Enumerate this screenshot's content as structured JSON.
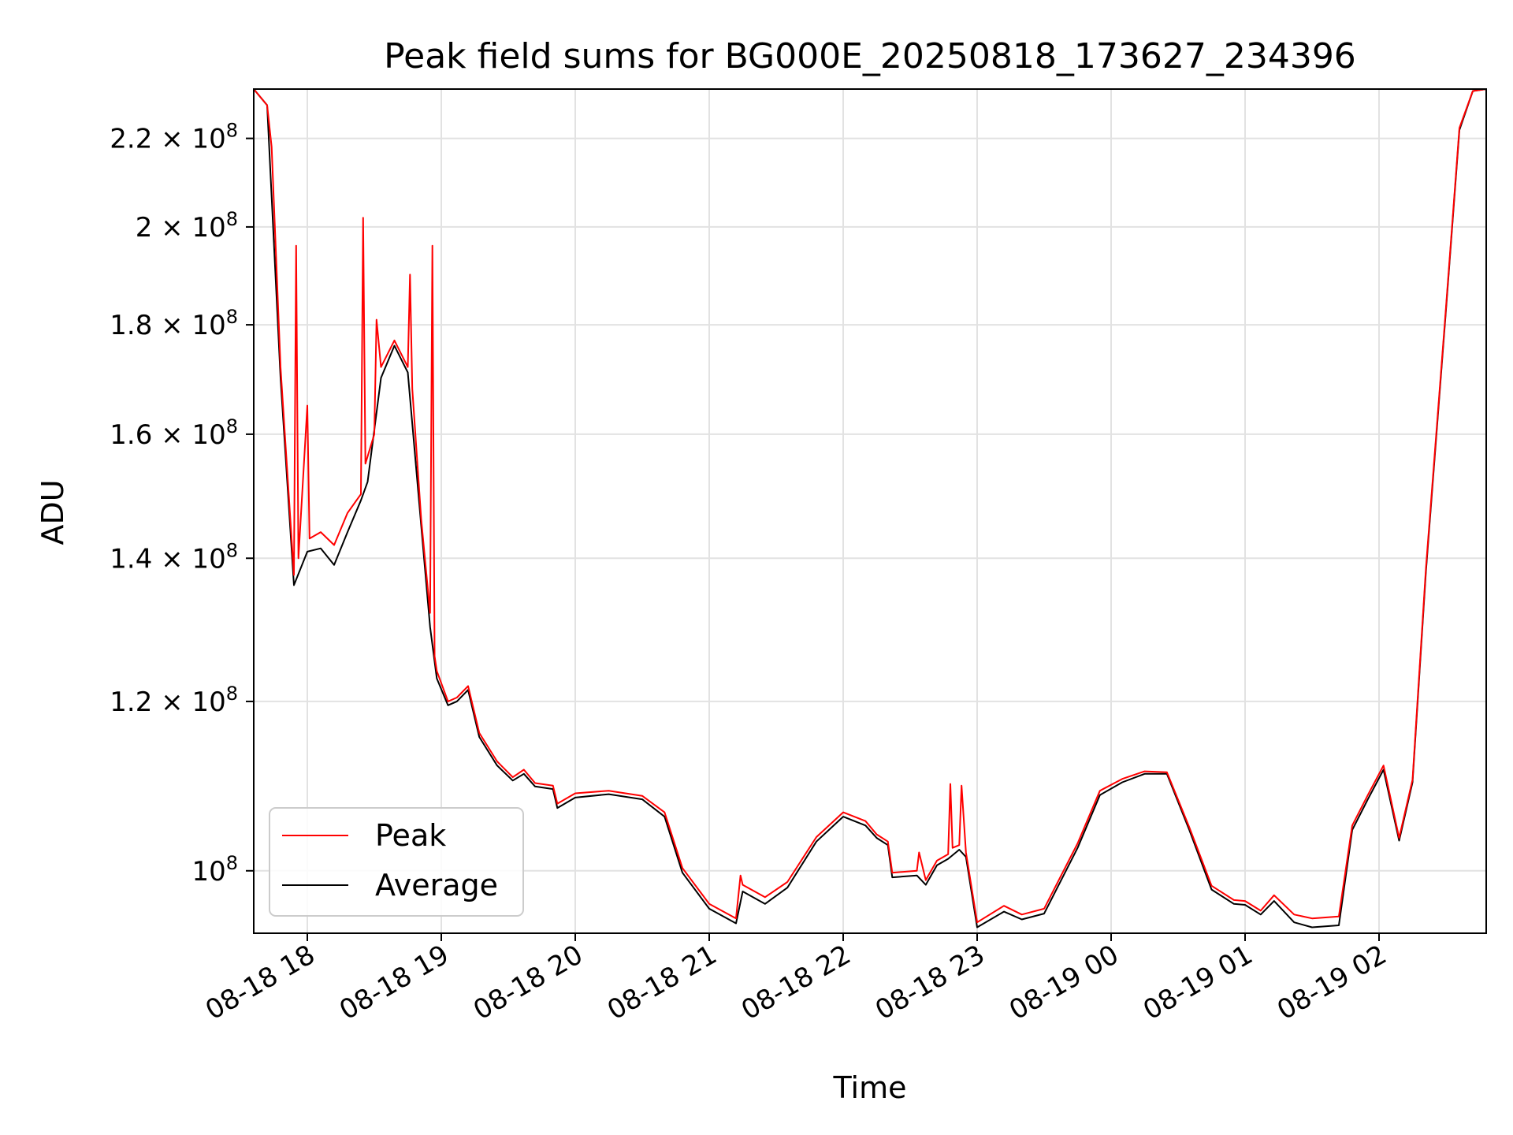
{
  "chart_data": {
    "type": "line",
    "title": "Peak field sums for BG000E_20250818_173627_234396",
    "xlabel": "Time",
    "ylabel": "ADU",
    "y_scale": "log",
    "ylim": [
      93500000,
      232000000
    ],
    "xlim": [
      "2025-08-18T17:36",
      "2025-08-19T02:48"
    ],
    "grid": true,
    "legend_position": "lower-left",
    "x_ticks": [
      {
        "t": "2025-08-18T18:00",
        "label": "08-18 18"
      },
      {
        "t": "2025-08-18T19:00",
        "label": "08-18 19"
      },
      {
        "t": "2025-08-18T20:00",
        "label": "08-18 20"
      },
      {
        "t": "2025-08-18T21:00",
        "label": "08-18 21"
      },
      {
        "t": "2025-08-18T22:00",
        "label": "08-18 22"
      },
      {
        "t": "2025-08-18T23:00",
        "label": "08-18 23"
      },
      {
        "t": "2025-08-19T00:00",
        "label": "08-19 00"
      },
      {
        "t": "2025-08-19T01:00",
        "label": "08-19 01"
      },
      {
        "t": "2025-08-19T02:00",
        "label": "08-19 02"
      }
    ],
    "y_ticks": [
      {
        "value": 100000000,
        "mant": "",
        "exp": "8"
      },
      {
        "value": 120000000,
        "mant": "1.2",
        "exp": "8"
      },
      {
        "value": 140000000,
        "mant": "1.4",
        "exp": "8"
      },
      {
        "value": 160000000,
        "mant": "1.6",
        "exp": "8"
      },
      {
        "value": 180000000,
        "mant": "1.8",
        "exp": "8"
      },
      {
        "value": 200000000,
        "mant": "2",
        "exp": "8"
      },
      {
        "value": 220000000,
        "mant": "2.2",
        "exp": "8"
      }
    ],
    "series": [
      {
        "name": "Average",
        "color": "#000000",
        "points": [
          [
            "2025-08-18T17:36",
            232000000
          ],
          [
            "2025-08-18T17:42",
            228000000
          ],
          [
            "2025-08-18T17:48",
            170000000
          ],
          [
            "2025-08-18T17:54",
            136000000
          ],
          [
            "2025-08-18T18:00",
            141000000
          ],
          [
            "2025-08-18T18:06",
            141500000
          ],
          [
            "2025-08-18T18:12",
            139000000
          ],
          [
            "2025-08-18T18:18",
            144000000
          ],
          [
            "2025-08-18T18:24",
            149000000
          ],
          [
            "2025-08-18T18:27",
            152000000
          ],
          [
            "2025-08-18T18:33",
            170000000
          ],
          [
            "2025-08-18T18:39",
            176000000
          ],
          [
            "2025-08-18T18:45",
            171000000
          ],
          [
            "2025-08-18T18:51",
            145000000
          ],
          [
            "2025-08-18T18:55",
            130000000
          ],
          [
            "2025-08-18T18:58",
            123000000
          ],
          [
            "2025-08-18T19:03",
            119500000
          ],
          [
            "2025-08-18T19:07",
            120000000
          ],
          [
            "2025-08-18T19:12",
            121500000
          ],
          [
            "2025-08-18T19:17",
            115500000
          ],
          [
            "2025-08-18T19:25",
            112000000
          ],
          [
            "2025-08-18T19:32",
            110200000
          ],
          [
            "2025-08-18T19:37",
            111000000
          ],
          [
            "2025-08-18T19:42",
            109500000
          ],
          [
            "2025-08-18T19:50",
            109200000
          ],
          [
            "2025-08-18T19:52",
            107000000
          ],
          [
            "2025-08-18T20:00",
            108200000
          ],
          [
            "2025-08-18T20:15",
            108600000
          ],
          [
            "2025-08-18T20:30",
            108000000
          ],
          [
            "2025-08-18T20:40",
            106000000
          ],
          [
            "2025-08-18T20:48",
            99800000
          ],
          [
            "2025-08-18T21:00",
            96000000
          ],
          [
            "2025-08-18T21:12",
            94500000
          ],
          [
            "2025-08-18T21:15",
            97800000
          ],
          [
            "2025-08-18T21:25",
            96500000
          ],
          [
            "2025-08-18T21:35",
            98200000
          ],
          [
            "2025-08-18T21:48",
            103200000
          ],
          [
            "2025-08-18T22:00",
            106000000
          ],
          [
            "2025-08-18T22:10",
            105000000
          ],
          [
            "2025-08-18T22:15",
            103600000
          ],
          [
            "2025-08-18T22:20",
            102800000
          ],
          [
            "2025-08-18T22:22",
            99300000
          ],
          [
            "2025-08-18T22:33",
            99500000
          ],
          [
            "2025-08-18T22:37",
            98500000
          ],
          [
            "2025-08-18T22:42",
            100600000
          ],
          [
            "2025-08-18T22:47",
            101300000
          ],
          [
            "2025-08-18T22:52",
            102300000
          ],
          [
            "2025-08-18T22:55",
            101500000
          ],
          [
            "2025-08-18T23:00",
            94100000
          ],
          [
            "2025-08-18T23:12",
            95700000
          ],
          [
            "2025-08-18T23:20",
            94900000
          ],
          [
            "2025-08-18T23:30",
            95500000
          ],
          [
            "2025-08-18T23:45",
            102500000
          ],
          [
            "2025-08-18T23:55",
            108500000
          ],
          [
            "2025-08-19T00:05",
            110000000
          ],
          [
            "2025-08-19T00:15",
            111000000
          ],
          [
            "2025-08-19T00:25",
            111000000
          ],
          [
            "2025-08-19T00:35",
            104500000
          ],
          [
            "2025-08-19T00:45",
            98000000
          ],
          [
            "2025-08-19T00:55",
            96500000
          ],
          [
            "2025-08-19T01:00",
            96400000
          ],
          [
            "2025-08-19T01:07",
            95400000
          ],
          [
            "2025-08-19T01:13",
            96800000
          ],
          [
            "2025-08-19T01:22",
            94600000
          ],
          [
            "2025-08-19T01:30",
            94100000
          ],
          [
            "2025-08-19T01:42",
            94300000
          ],
          [
            "2025-08-19T01:48",
            104500000
          ],
          [
            "2025-08-19T01:55",
            108000000
          ],
          [
            "2025-08-19T02:02",
            111500000
          ],
          [
            "2025-08-19T02:09",
            103300000
          ],
          [
            "2025-08-19T02:15",
            110000000
          ],
          [
            "2025-08-19T02:21",
            138000000
          ],
          [
            "2025-08-19T02:30",
            183000000
          ],
          [
            "2025-08-19T02:36",
            222000000
          ],
          [
            "2025-08-19T02:42",
            231500000
          ],
          [
            "2025-08-19T02:48",
            232000000
          ]
        ]
      },
      {
        "name": "Peak",
        "color": "#ff0000",
        "points": [
          [
            "2025-08-18T17:36",
            232000000
          ],
          [
            "2025-08-18T17:42",
            228000000
          ],
          [
            "2025-08-18T17:44",
            218000000
          ],
          [
            "2025-08-18T17:48",
            172000000
          ],
          [
            "2025-08-18T17:54",
            137500000
          ],
          [
            "2025-08-18T17:55",
            196000000
          ],
          [
            "2025-08-18T17:56",
            140000000
          ],
          [
            "2025-08-18T18:00",
            165000000
          ],
          [
            "2025-08-18T18:01",
            143000000
          ],
          [
            "2025-08-18T18:06",
            144000000
          ],
          [
            "2025-08-18T18:12",
            142000000
          ],
          [
            "2025-08-18T18:18",
            147000000
          ],
          [
            "2025-08-18T18:24",
            150000000
          ],
          [
            "2025-08-18T18:25",
            202000000
          ],
          [
            "2025-08-18T18:26",
            155000000
          ],
          [
            "2025-08-18T18:30",
            160000000
          ],
          [
            "2025-08-18T18:31",
            181000000
          ],
          [
            "2025-08-18T18:33",
            172000000
          ],
          [
            "2025-08-18T18:39",
            177000000
          ],
          [
            "2025-08-18T18:45",
            172000000
          ],
          [
            "2025-08-18T18:46",
            190000000
          ],
          [
            "2025-08-18T18:47",
            168000000
          ],
          [
            "2025-08-18T18:51",
            146000000
          ],
          [
            "2025-08-18T18:55",
            132000000
          ],
          [
            "2025-08-18T18:56",
            196000000
          ],
          [
            "2025-08-18T18:57",
            126000000
          ],
          [
            "2025-08-18T18:58",
            124000000
          ],
          [
            "2025-08-18T19:03",
            120000000
          ],
          [
            "2025-08-18T19:07",
            120500000
          ],
          [
            "2025-08-18T19:12",
            122000000
          ],
          [
            "2025-08-18T19:17",
            116000000
          ],
          [
            "2025-08-18T19:25",
            112500000
          ],
          [
            "2025-08-18T19:32",
            110600000
          ],
          [
            "2025-08-18T19:37",
            111500000
          ],
          [
            "2025-08-18T19:42",
            109900000
          ],
          [
            "2025-08-18T19:50",
            109600000
          ],
          [
            "2025-08-18T19:52",
            107500000
          ],
          [
            "2025-08-18T20:00",
            108700000
          ],
          [
            "2025-08-18T20:15",
            109000000
          ],
          [
            "2025-08-18T20:30",
            108400000
          ],
          [
            "2025-08-18T20:40",
            106500000
          ],
          [
            "2025-08-18T20:48",
            100300000
          ],
          [
            "2025-08-18T21:00",
            96500000
          ],
          [
            "2025-08-18T21:12",
            95000000
          ],
          [
            "2025-08-18T21:14",
            99500000
          ],
          [
            "2025-08-18T21:15",
            98500000
          ],
          [
            "2025-08-18T21:25",
            97200000
          ],
          [
            "2025-08-18T21:35",
            98800000
          ],
          [
            "2025-08-18T21:48",
            103700000
          ],
          [
            "2025-08-18T22:00",
            106500000
          ],
          [
            "2025-08-18T22:10",
            105500000
          ],
          [
            "2025-08-18T22:15",
            104000000
          ],
          [
            "2025-08-18T22:20",
            103200000
          ],
          [
            "2025-08-18T22:22",
            99800000
          ],
          [
            "2025-08-18T22:33",
            100000000
          ],
          [
            "2025-08-18T22:34",
            102000000
          ],
          [
            "2025-08-18T22:37",
            99000000
          ],
          [
            "2025-08-18T22:42",
            101100000
          ],
          [
            "2025-08-18T22:47",
            101800000
          ],
          [
            "2025-08-18T22:48",
            109800000
          ],
          [
            "2025-08-18T22:49",
            102500000
          ],
          [
            "2025-08-18T22:52",
            102800000
          ],
          [
            "2025-08-18T22:53",
            109600000
          ],
          [
            "2025-08-18T22:55",
            102000000
          ],
          [
            "2025-08-18T23:00",
            94600000
          ],
          [
            "2025-08-18T23:12",
            96300000
          ],
          [
            "2025-08-18T23:20",
            95400000
          ],
          [
            "2025-08-18T23:30",
            96000000
          ],
          [
            "2025-08-18T23:45",
            103000000
          ],
          [
            "2025-08-18T23:55",
            109000000
          ],
          [
            "2025-08-19T00:05",
            110400000
          ],
          [
            "2025-08-19T00:15",
            111300000
          ],
          [
            "2025-08-19T00:25",
            111200000
          ],
          [
            "2025-08-19T00:35",
            104800000
          ],
          [
            "2025-08-19T00:45",
            98400000
          ],
          [
            "2025-08-19T00:55",
            96900000
          ],
          [
            "2025-08-19T01:00",
            96800000
          ],
          [
            "2025-08-19T01:07",
            95800000
          ],
          [
            "2025-08-19T01:13",
            97400000
          ],
          [
            "2025-08-19T01:22",
            95400000
          ],
          [
            "2025-08-19T01:30",
            95000000
          ],
          [
            "2025-08-19T01:42",
            95200000
          ],
          [
            "2025-08-19T01:48",
            105000000
          ],
          [
            "2025-08-19T01:55",
            108500000
          ],
          [
            "2025-08-19T02:02",
            112000000
          ],
          [
            "2025-08-19T02:09",
            103600000
          ],
          [
            "2025-08-19T02:15",
            110300000
          ],
          [
            "2025-08-19T02:21",
            138500000
          ],
          [
            "2025-08-19T02:30",
            183500000
          ],
          [
            "2025-08-19T02:36",
            222500000
          ],
          [
            "2025-08-19T02:42",
            231500000
          ],
          [
            "2025-08-19T02:48",
            232000000
          ]
        ]
      }
    ],
    "legend": [
      {
        "label": "Peak",
        "color": "#ff0000"
      },
      {
        "label": "Average",
        "color": "#000000"
      }
    ]
  }
}
